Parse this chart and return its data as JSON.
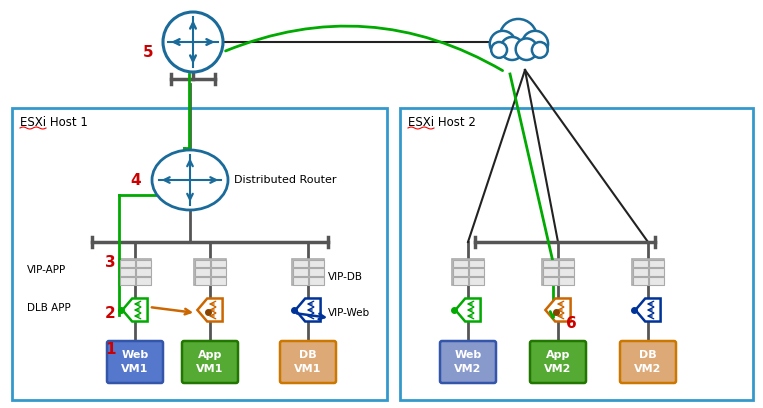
{
  "fig_width": 7.63,
  "fig_height": 4.08,
  "dpi": 100,
  "bg_color": "#ffffff",
  "box_edge_color": "#3399cc",
  "host1_label": "ESXi Host 1",
  "host2_label": "ESXi Host 2",
  "router_label": "Distributed Router",
  "step_color": "#cc0000",
  "green_color": "#00aa00",
  "orange_color": "#cc6600",
  "blue_dark_color": "#003399",
  "router_color": "#1a6a9a",
  "switch_color": "#aaaaaa",
  "line_color": "#555555",
  "vm1_web_color": "#5577cc",
  "vm1_app_color": "#55aa33",
  "vm1_db_color": "#ddaa77",
  "vm2_web_color": "#8899cc",
  "vm2_app_color": "#55aa33",
  "vm2_db_color": "#ddaa77",
  "vm_border_color": "#336699",
  "cloud_color": "#1a6a9a",
  "black_line": "#222222"
}
